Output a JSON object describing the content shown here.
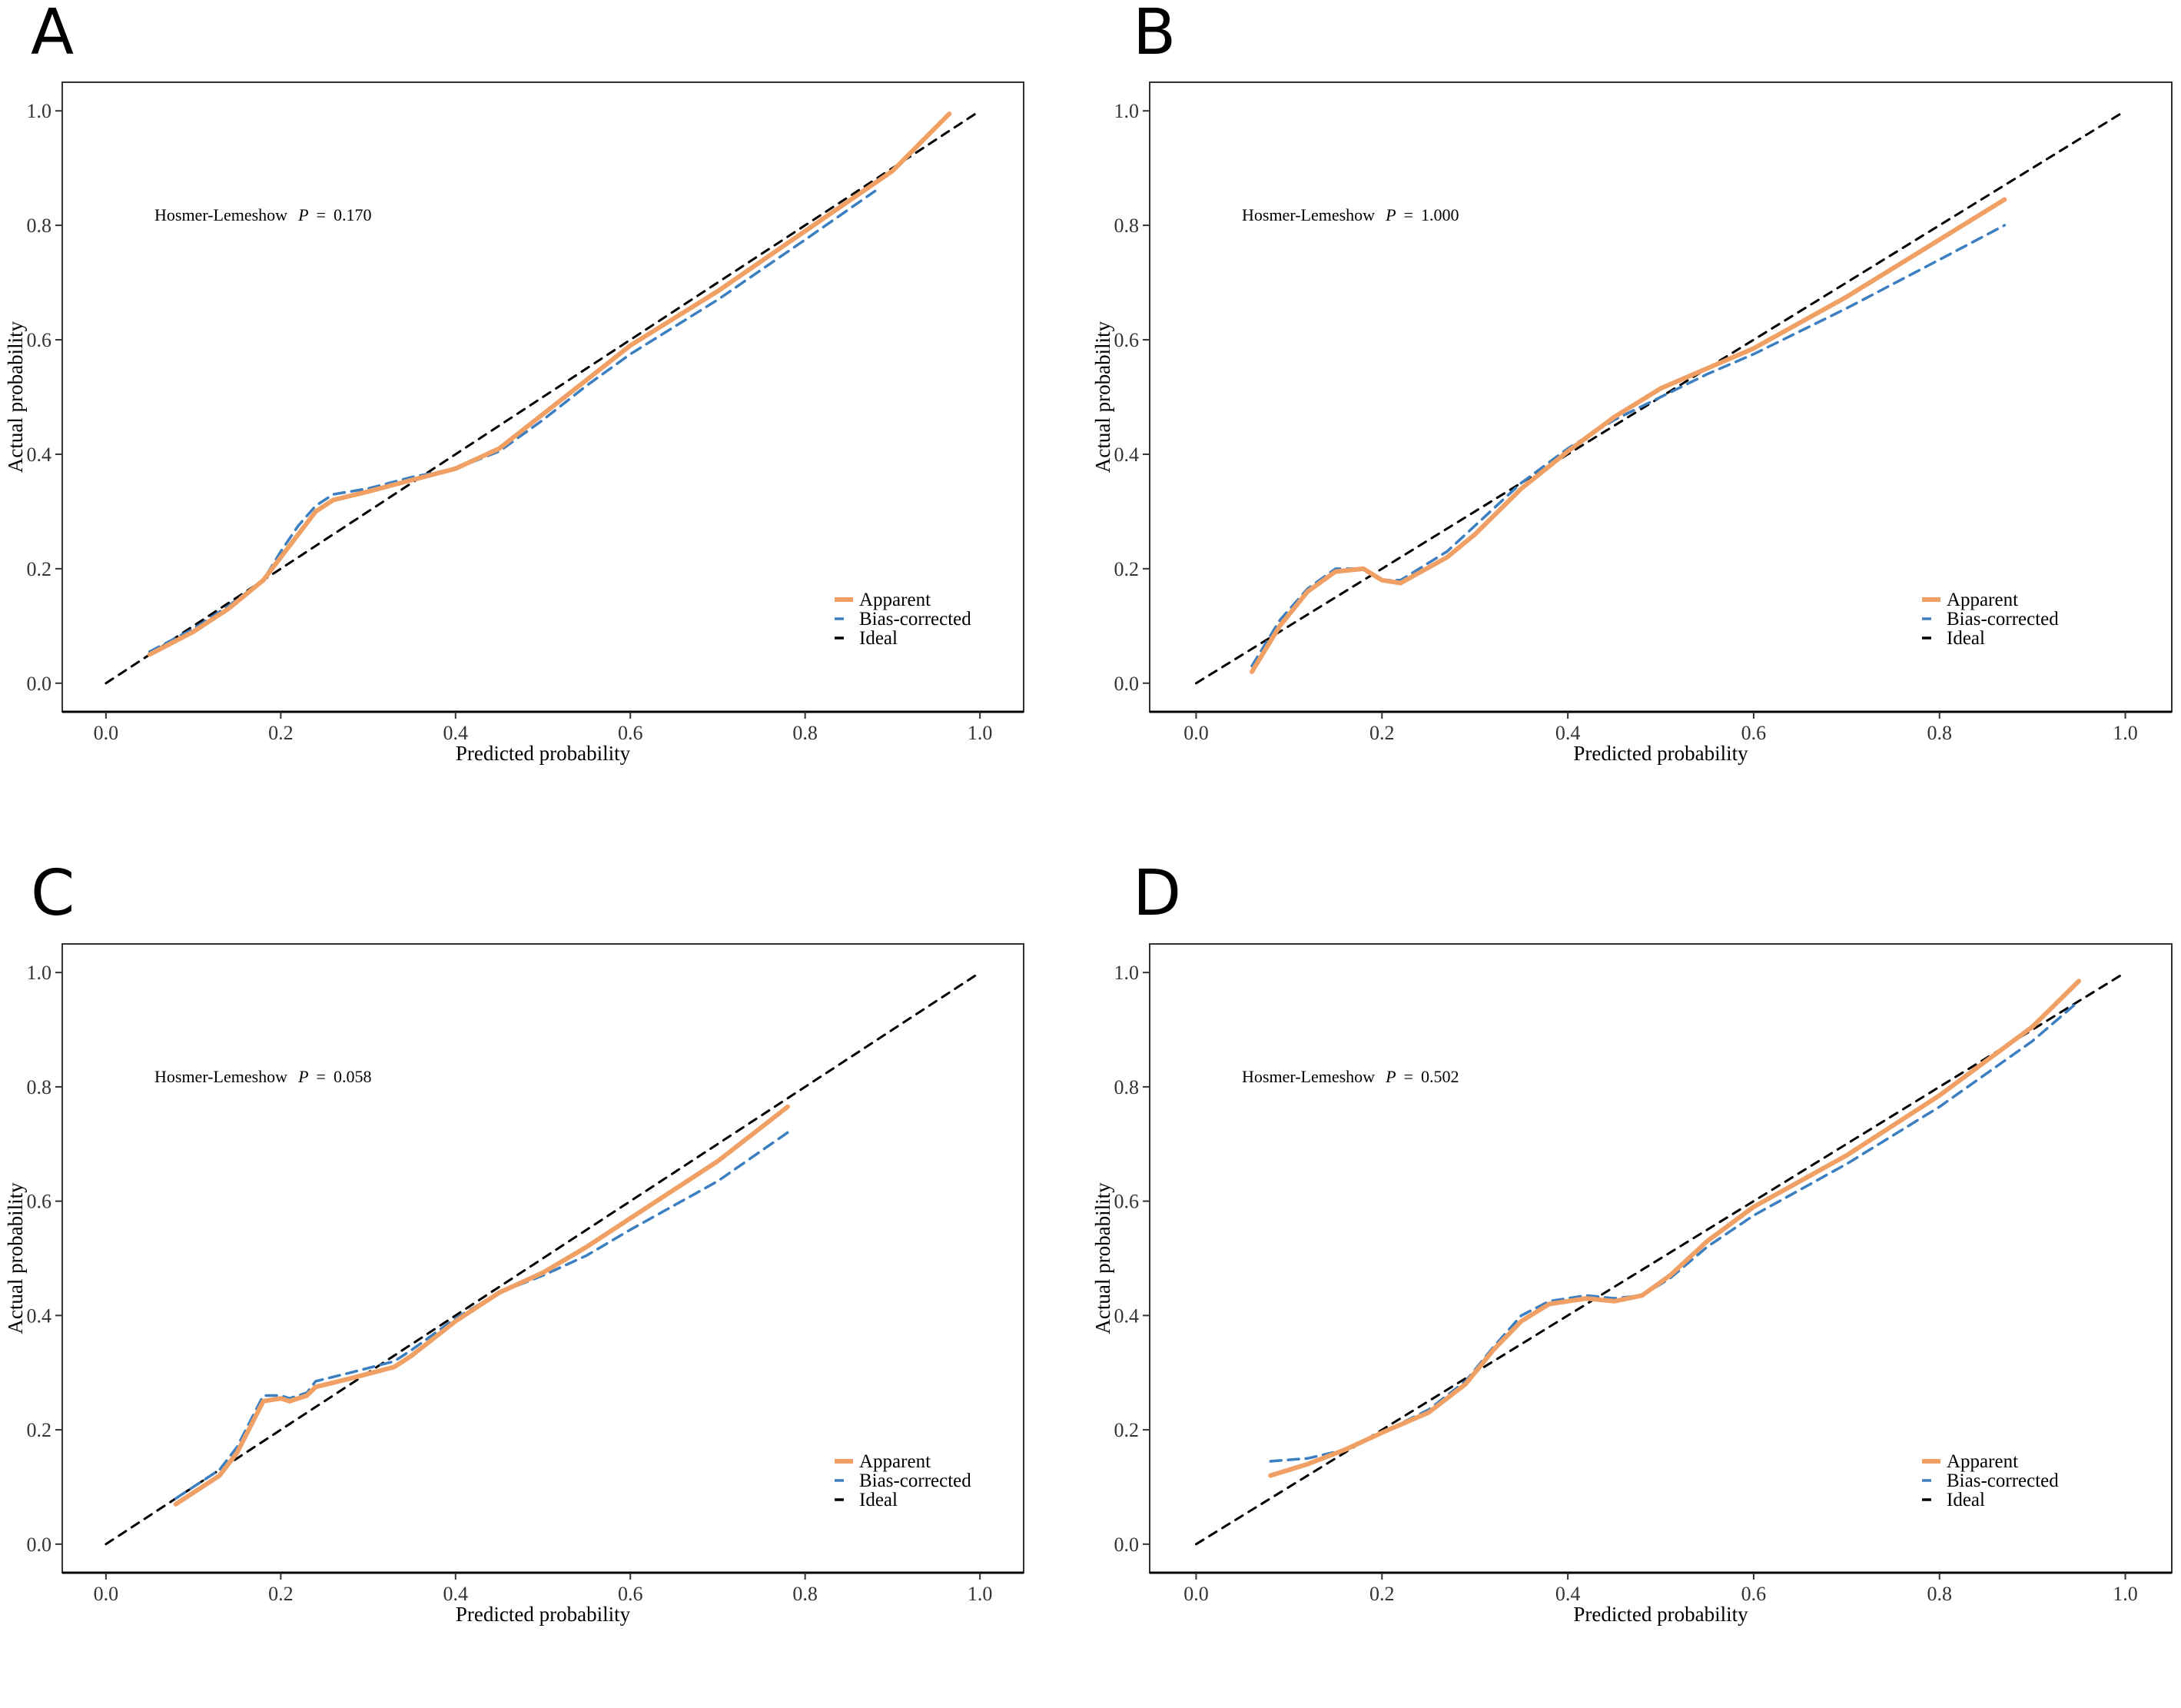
{
  "chart_data": [
    {
      "panel": "A",
      "type": "line",
      "xlabel": "Predicted probability",
      "ylabel": "Actual probability",
      "xlim": [
        -0.05,
        1.05
      ],
      "ylim": [
        -0.05,
        1.05
      ],
      "xticks": [
        "0.0",
        "0.2",
        "0.4",
        "0.6",
        "0.8",
        "1.0"
      ],
      "yticks": [
        "0.0",
        "0.2",
        "0.4",
        "0.6",
        "0.8",
        "1.0"
      ],
      "annotation": {
        "prefix": "Hosmer-Lemeshow",
        "stat": "P",
        "eq": "=",
        "value": "0.170"
      },
      "legend": [
        "Apparent",
        "Bias-corrected",
        "Ideal"
      ],
      "series": [
        {
          "name": "Apparent",
          "color": "#F0A064",
          "style": "solid",
          "x": [
            0.05,
            0.1,
            0.14,
            0.18,
            0.2,
            0.22,
            0.24,
            0.26,
            0.3,
            0.35,
            0.4,
            0.45,
            0.5,
            0.55,
            0.6,
            0.7,
            0.8,
            0.9,
            0.965
          ],
          "y": [
            0.05,
            0.09,
            0.13,
            0.18,
            0.22,
            0.26,
            0.3,
            0.32,
            0.335,
            0.355,
            0.375,
            0.41,
            0.47,
            0.53,
            0.59,
            0.685,
            0.79,
            0.895,
            0.995
          ]
        },
        {
          "name": "Bias-corrected",
          "color": "#3C7FC0",
          "style": "dashed",
          "x": [
            0.05,
            0.1,
            0.14,
            0.18,
            0.2,
            0.22,
            0.24,
            0.26,
            0.3,
            0.35,
            0.4,
            0.45,
            0.5,
            0.55,
            0.6,
            0.7,
            0.8,
            0.88
          ],
          "y": [
            0.055,
            0.095,
            0.135,
            0.18,
            0.23,
            0.275,
            0.31,
            0.33,
            0.34,
            0.36,
            0.375,
            0.405,
            0.46,
            0.52,
            0.575,
            0.67,
            0.775,
            0.86
          ]
        },
        {
          "name": "Ideal",
          "color": "#000000",
          "style": "dashed",
          "x": [
            0,
            1
          ],
          "y": [
            0,
            1
          ]
        }
      ]
    },
    {
      "panel": "B",
      "type": "line",
      "xlabel": "Predicted probability",
      "ylabel": "Actual probability",
      "xlim": [
        -0.05,
        1.05
      ],
      "ylim": [
        -0.05,
        1.05
      ],
      "xticks": [
        "0.0",
        "0.2",
        "0.4",
        "0.6",
        "0.8",
        "1.0"
      ],
      "yticks": [
        "0.0",
        "0.2",
        "0.4",
        "0.6",
        "0.8",
        "1.0"
      ],
      "annotation": {
        "prefix": "Hosmer-Lemeshow",
        "stat": "P",
        "eq": "=",
        "value": "1.000"
      },
      "legend": [
        "Apparent",
        "Bias-corrected",
        "Ideal"
      ],
      "series": [
        {
          "name": "Apparent",
          "color": "#F0A064",
          "style": "solid",
          "x": [
            0.06,
            0.09,
            0.12,
            0.15,
            0.18,
            0.2,
            0.22,
            0.27,
            0.3,
            0.35,
            0.4,
            0.45,
            0.5,
            0.55,
            0.6,
            0.7,
            0.8,
            0.87
          ],
          "y": [
            0.02,
            0.1,
            0.16,
            0.195,
            0.2,
            0.18,
            0.175,
            0.22,
            0.26,
            0.34,
            0.405,
            0.465,
            0.515,
            0.55,
            0.585,
            0.675,
            0.775,
            0.845
          ]
        },
        {
          "name": "Bias-corrected",
          "color": "#3C7FC0",
          "style": "dashed",
          "x": [
            0.06,
            0.09,
            0.12,
            0.15,
            0.18,
            0.2,
            0.22,
            0.27,
            0.3,
            0.35,
            0.4,
            0.45,
            0.5,
            0.55,
            0.6,
            0.7,
            0.8,
            0.87
          ],
          "y": [
            0.03,
            0.11,
            0.165,
            0.2,
            0.2,
            0.18,
            0.18,
            0.23,
            0.275,
            0.35,
            0.41,
            0.46,
            0.5,
            0.54,
            0.575,
            0.655,
            0.74,
            0.8
          ]
        },
        {
          "name": "Ideal",
          "color": "#000000",
          "style": "dashed",
          "x": [
            0,
            1
          ],
          "y": [
            0,
            1
          ]
        }
      ]
    },
    {
      "panel": "C",
      "type": "line",
      "xlabel": "Predicted probability",
      "ylabel": "Actual probability",
      "xlim": [
        -0.05,
        1.05
      ],
      "ylim": [
        -0.05,
        1.05
      ],
      "xticks": [
        "0.0",
        "0.2",
        "0.4",
        "0.6",
        "0.8",
        "1.0"
      ],
      "yticks": [
        "0.0",
        "0.2",
        "0.4",
        "0.6",
        "0.8",
        "1.0"
      ],
      "annotation": {
        "prefix": "Hosmer-Lemeshow",
        "stat": "P",
        "eq": "=",
        "value": "0.058"
      },
      "legend": [
        "Apparent",
        "Bias-corrected",
        "Ideal"
      ],
      "series": [
        {
          "name": "Apparent",
          "color": "#F0A064",
          "style": "solid",
          "x": [
            0.08,
            0.13,
            0.15,
            0.17,
            0.18,
            0.2,
            0.21,
            0.23,
            0.24,
            0.28,
            0.33,
            0.35,
            0.4,
            0.45,
            0.5,
            0.55,
            0.6,
            0.7,
            0.78
          ],
          "y": [
            0.07,
            0.12,
            0.16,
            0.22,
            0.25,
            0.255,
            0.25,
            0.26,
            0.275,
            0.29,
            0.31,
            0.33,
            0.39,
            0.44,
            0.475,
            0.52,
            0.57,
            0.67,
            0.765
          ]
        },
        {
          "name": "Bias-corrected",
          "color": "#3C7FC0",
          "style": "dashed",
          "x": [
            0.08,
            0.13,
            0.15,
            0.17,
            0.18,
            0.2,
            0.21,
            0.23,
            0.24,
            0.28,
            0.33,
            0.35,
            0.4,
            0.45,
            0.5,
            0.55,
            0.6,
            0.7,
            0.78
          ],
          "y": [
            0.08,
            0.13,
            0.17,
            0.23,
            0.26,
            0.26,
            0.255,
            0.265,
            0.285,
            0.3,
            0.32,
            0.34,
            0.395,
            0.44,
            0.47,
            0.505,
            0.55,
            0.635,
            0.72
          ]
        },
        {
          "name": "Ideal",
          "color": "#000000",
          "style": "dashed",
          "x": [
            0,
            1
          ],
          "y": [
            0,
            1
          ]
        }
      ]
    },
    {
      "panel": "D",
      "type": "line",
      "xlabel": "Predicted probability",
      "ylabel": "Actual probability",
      "xlim": [
        -0.05,
        1.05
      ],
      "ylim": [
        -0.05,
        1.05
      ],
      "xticks": [
        "0.0",
        "0.2",
        "0.4",
        "0.6",
        "0.8",
        "1.0"
      ],
      "yticks": [
        "0.0",
        "0.2",
        "0.4",
        "0.6",
        "0.8",
        "1.0"
      ],
      "annotation": {
        "prefix": "Hosmer-Lemeshow",
        "stat": "P",
        "eq": "=",
        "value": "0.502"
      },
      "legend": [
        "Apparent",
        "Bias-corrected",
        "Ideal"
      ],
      "series": [
        {
          "name": "Apparent",
          "color": "#F0A064",
          "style": "solid",
          "x": [
            0.08,
            0.12,
            0.16,
            0.2,
            0.25,
            0.29,
            0.32,
            0.35,
            0.38,
            0.42,
            0.45,
            0.48,
            0.51,
            0.55,
            0.6,
            0.7,
            0.8,
            0.9,
            0.95
          ],
          "y": [
            0.12,
            0.14,
            0.165,
            0.195,
            0.23,
            0.28,
            0.34,
            0.39,
            0.42,
            0.43,
            0.425,
            0.435,
            0.47,
            0.53,
            0.59,
            0.68,
            0.785,
            0.905,
            0.985
          ]
        },
        {
          "name": "Bias-corrected",
          "color": "#3C7FC0",
          "style": "dashed",
          "x": [
            0.08,
            0.12,
            0.16,
            0.2,
            0.25,
            0.29,
            0.32,
            0.35,
            0.38,
            0.42,
            0.45,
            0.48,
            0.51,
            0.55,
            0.6,
            0.7,
            0.8,
            0.9,
            0.95
          ],
          "y": [
            0.145,
            0.15,
            0.165,
            0.195,
            0.235,
            0.285,
            0.345,
            0.4,
            0.425,
            0.435,
            0.43,
            0.435,
            0.465,
            0.52,
            0.575,
            0.665,
            0.765,
            0.88,
            0.95
          ]
        },
        {
          "name": "Ideal",
          "color": "#000000",
          "style": "dashed",
          "x": [
            0,
            1
          ],
          "y": [
            0,
            1
          ]
        }
      ]
    }
  ]
}
